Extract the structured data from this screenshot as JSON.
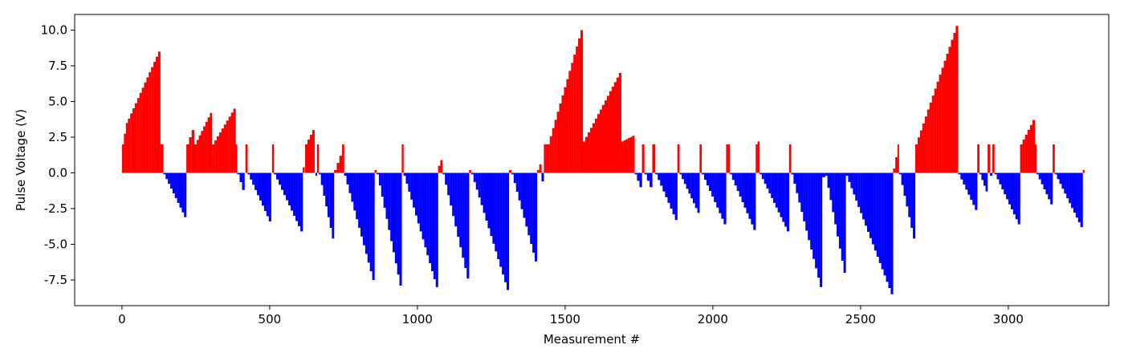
{
  "chart_data": {
    "type": "bar",
    "title": "",
    "xlabel": "Measurement #",
    "ylabel": "Pulse Voltage (V)",
    "xlim": [
      -160,
      3340
    ],
    "ylim": [
      -9.3,
      11.1
    ],
    "xticks": [
      0,
      500,
      1000,
      1500,
      2000,
      2500,
      3000
    ],
    "yticks": [
      -7.5,
      -5.0,
      -2.5,
      0.0,
      2.5,
      5.0,
      7.5,
      10.0
    ],
    "grid": false,
    "colors": {
      "positive": "#ff0000",
      "negative": "#0000ff"
    },
    "segments": [
      {
        "x0": 0,
        "x1": 20,
        "y0": 2.0,
        "y1": 3.5
      },
      {
        "x0": 20,
        "x1": 130,
        "y0": 3.8,
        "y1": 8.5
      },
      {
        "x0": 130,
        "x1": 140,
        "y0": 2.0,
        "y1": 2.0
      },
      {
        "x0": 140,
        "x1": 218,
        "y0": -0.1,
        "y1": -3.1
      },
      {
        "x0": 218,
        "x1": 245,
        "y0": 2.0,
        "y1": 3.0
      },
      {
        "x0": 245,
        "x1": 305,
        "y0": 2.0,
        "y1": 4.2
      },
      {
        "x0": 305,
        "x1": 385,
        "y0": 2.0,
        "y1": 4.5
      },
      {
        "x0": 385,
        "x1": 390,
        "y0": 2.0,
        "y1": 2.0
      },
      {
        "x0": 390,
        "x1": 415,
        "y0": -0.1,
        "y1": -1.2
      },
      {
        "x0": 418,
        "x1": 425,
        "y0": 2.0,
        "y1": 2.0
      },
      {
        "x0": 425,
        "x1": 505,
        "y0": -0.1,
        "y1": -3.4
      },
      {
        "x0": 508,
        "x1": 514,
        "y0": 2.0,
        "y1": 2.0
      },
      {
        "x0": 514,
        "x1": 612,
        "y0": -0.1,
        "y1": -4.1
      },
      {
        "x0": 612,
        "x1": 618,
        "y0": 0.2,
        "y1": 0.4
      },
      {
        "x0": 620,
        "x1": 652,
        "y0": 2.0,
        "y1": 3.0
      },
      {
        "x0": 655,
        "x1": 660,
        "y0": -0.2,
        "y1": -0.2
      },
      {
        "x0": 660,
        "x1": 666,
        "y0": 2.0,
        "y1": 2.0
      },
      {
        "x0": 666,
        "x1": 718,
        "y0": -0.1,
        "y1": -4.6
      },
      {
        "x0": 718,
        "x1": 745,
        "y0": 0.2,
        "y1": 1.2
      },
      {
        "x0": 745,
        "x1": 752,
        "y0": 2.0,
        "y1": 2.0
      },
      {
        "x0": 752,
        "x1": 855,
        "y0": -0.2,
        "y1": -7.5
      },
      {
        "x0": 855,
        "x1": 862,
        "y0": 0.2,
        "y1": 0.2
      },
      {
        "x0": 862,
        "x1": 947,
        "y0": -0.1,
        "y1": -7.9
      },
      {
        "x0": 947,
        "x1": 953,
        "y0": 2.0,
        "y1": 2.0
      },
      {
        "x0": 953,
        "x1": 1070,
        "y0": -0.2,
        "y1": -8.0
      },
      {
        "x0": 1070,
        "x1": 1085,
        "y0": 0.5,
        "y1": 0.9
      },
      {
        "x0": 1085,
        "x1": 1175,
        "y0": -0.1,
        "y1": -7.4
      },
      {
        "x0": 1175,
        "x1": 1182,
        "y0": 0.2,
        "y1": 0.2
      },
      {
        "x0": 1182,
        "x1": 1310,
        "y0": -0.1,
        "y1": -8.2
      },
      {
        "x0": 1310,
        "x1": 1318,
        "y0": 0.2,
        "y1": 0.2
      },
      {
        "x0": 1318,
        "x1": 1405,
        "y0": -0.1,
        "y1": -6.2
      },
      {
        "x0": 1405,
        "x1": 1420,
        "y0": 0.2,
        "y1": 0.6
      },
      {
        "x0": 1420,
        "x1": 1428,
        "y0": -0.3,
        "y1": -0.6
      },
      {
        "x0": 1428,
        "x1": 1440,
        "y0": 2.0,
        "y1": 2.0
      },
      {
        "x0": 1440,
        "x1": 1560,
        "y0": 2.0,
        "y1": 10.0
      },
      {
        "x0": 1560,
        "x1": 1690,
        "y0": 2.2,
        "y1": 7.0
      },
      {
        "x0": 1690,
        "x1": 1735,
        "y0": 2.2,
        "y1": 2.6
      },
      {
        "x0": 1735,
        "x1": 1760,
        "y0": -0.1,
        "y1": -1.0
      },
      {
        "x0": 1760,
        "x1": 1768,
        "y0": 2.0,
        "y1": 2.0
      },
      {
        "x0": 1768,
        "x1": 1795,
        "y0": -0.1,
        "y1": -1.0
      },
      {
        "x0": 1795,
        "x1": 1805,
        "y0": 2.0,
        "y1": 2.0
      },
      {
        "x0": 1805,
        "x1": 1880,
        "y0": -0.1,
        "y1": -3.3
      },
      {
        "x0": 1880,
        "x1": 1887,
        "y0": 2.0,
        "y1": 2.0
      },
      {
        "x0": 1887,
        "x1": 1955,
        "y0": -0.1,
        "y1": -2.8
      },
      {
        "x0": 1955,
        "x1": 1962,
        "y0": 2.0,
        "y1": 2.0
      },
      {
        "x0": 1962,
        "x1": 2045,
        "y0": -0.1,
        "y1": -3.6
      },
      {
        "x0": 2045,
        "x1": 2057,
        "y0": 2.0,
        "y1": 2.0
      },
      {
        "x0": 2057,
        "x1": 2145,
        "y0": -0.1,
        "y1": -4.0
      },
      {
        "x0": 2145,
        "x1": 2158,
        "y0": 2.0,
        "y1": 2.2
      },
      {
        "x0": 2158,
        "x1": 2258,
        "y0": -0.1,
        "y1": -4.1
      },
      {
        "x0": 2258,
        "x1": 2265,
        "y0": 2.0,
        "y1": 2.0
      },
      {
        "x0": 2265,
        "x1": 2370,
        "y0": -0.1,
        "y1": -8.0
      },
      {
        "x0": 2370,
        "x1": 2380,
        "y0": -0.3,
        "y1": -0.3
      },
      {
        "x0": 2380,
        "x1": 2450,
        "y0": -0.2,
        "y1": -7.0
      },
      {
        "x0": 2450,
        "x1": 2610,
        "y0": -0.2,
        "y1": -8.5
      },
      {
        "x0": 2610,
        "x1": 2625,
        "y0": 0.3,
        "y1": 1.1
      },
      {
        "x0": 2625,
        "x1": 2630,
        "y0": 2.0,
        "y1": 2.0
      },
      {
        "x0": 2630,
        "x1": 2685,
        "y0": -0.1,
        "y1": -4.6
      },
      {
        "x0": 2685,
        "x1": 2830,
        "y0": 2.0,
        "y1": 10.3
      },
      {
        "x0": 2830,
        "x1": 2895,
        "y0": -0.1,
        "y1": -2.6
      },
      {
        "x0": 2895,
        "x1": 2902,
        "y0": 2.0,
        "y1": 2.0
      },
      {
        "x0": 2902,
        "x1": 2930,
        "y0": -0.1,
        "y1": -1.3
      },
      {
        "x0": 2930,
        "x1": 2938,
        "y0": 2.0,
        "y1": 2.0
      },
      {
        "x0": 2938,
        "x1": 2946,
        "y0": -0.2,
        "y1": -0.2
      },
      {
        "x0": 2946,
        "x1": 2953,
        "y0": 2.0,
        "y1": 2.0
      },
      {
        "x0": 2953,
        "x1": 3040,
        "y0": -0.1,
        "y1": -3.6
      },
      {
        "x0": 3040,
        "x1": 3090,
        "y0": 2.0,
        "y1": 3.7
      },
      {
        "x0": 3090,
        "x1": 3095,
        "y0": 2.0,
        "y1": 2.0
      },
      {
        "x0": 3095,
        "x1": 3150,
        "y0": -0.1,
        "y1": -2.2
      },
      {
        "x0": 3150,
        "x1": 3157,
        "y0": 2.0,
        "y1": 2.0
      },
      {
        "x0": 3157,
        "x1": 3252,
        "y0": -0.1,
        "y1": -3.8
      },
      {
        "x0": 3252,
        "x1": 3258,
        "y0": 0.2,
        "y1": 0.2
      }
    ]
  }
}
